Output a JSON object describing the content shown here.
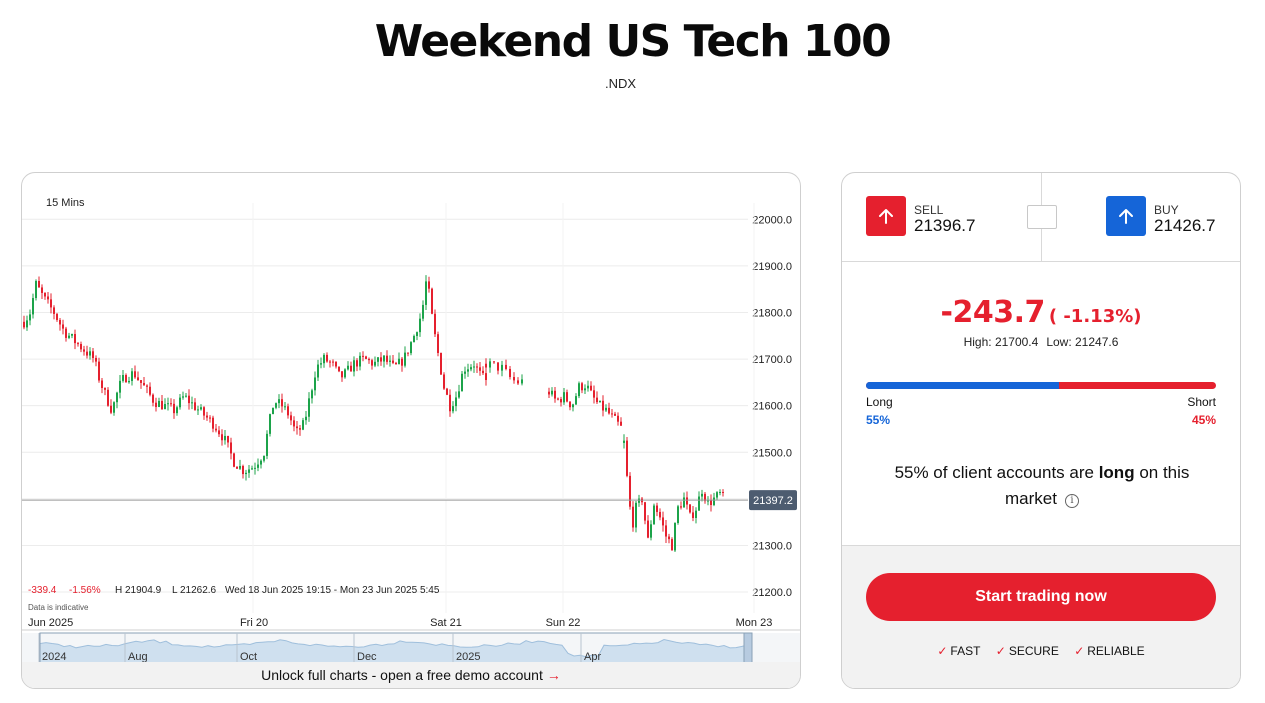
{
  "header": {
    "title": "Weekend US Tech 100",
    "symbol": ".NDX"
  },
  "chart": {
    "interval": "15 Mins",
    "summary": {
      "change": "-339.4",
      "change_pct": "-1.56%",
      "high": "H 21904.9",
      "low": "L 21262.6",
      "range": "Wed 18 Jun 2025 19:15 - Mon 23 Jun 2025 5:45"
    },
    "disclaimer": "Data is indicative",
    "current_price_label": "21397.2",
    "current_price": 21397.2,
    "unlock_text": "Unlock full charts - open a free demo account",
    "unlock_arrow": "→"
  },
  "chart_data": {
    "type": "candlestick",
    "interval": "15 Mins",
    "y_ticks": [
      "22000.0",
      "21900.0",
      "21800.0",
      "21700.0",
      "21600.0",
      "21500.0",
      "21400.0",
      "21300.0",
      "21200.0"
    ],
    "ylim": [
      21155,
      22035
    ],
    "x_labels": [
      "Jun 2025",
      "Fri 20",
      "Sat 21",
      "Sun 22",
      "Mon 23"
    ],
    "overview_labels": [
      "2024",
      "Aug",
      "Oct",
      "Dec",
      "2025",
      "Apr"
    ],
    "high": 21904.9,
    "low": 21262.6,
    "change": -339.4,
    "change_pct": -1.56,
    "current": 21397.2,
    "segments": [
      {
        "points": [
          [
            0,
            21780
          ],
          [
            6,
            21800
          ],
          [
            12,
            21860
          ],
          [
            20,
            21830
          ],
          [
            30,
            21800
          ],
          [
            40,
            21760
          ],
          [
            50,
            21740
          ],
          [
            60,
            21720
          ],
          [
            70,
            21700
          ],
          [
            75,
            21660
          ],
          [
            80,
            21630
          ],
          [
            88,
            21590
          ],
          [
            95,
            21640
          ],
          [
            100,
            21660
          ],
          [
            110,
            21670
          ],
          [
            120,
            21640
          ],
          [
            130,
            21610
          ],
          [
            140,
            21600
          ],
          [
            150,
            21590
          ],
          [
            160,
            21620
          ],
          [
            170,
            21600
          ],
          [
            180,
            21580
          ],
          [
            190,
            21560
          ],
          [
            200,
            21530
          ],
          [
            210,
            21480
          ],
          [
            220,
            21460
          ],
          [
            230,
            21470
          ],
          [
            240,
            21500
          ],
          [
            245,
            21560
          ],
          [
            250,
            21610
          ],
          [
            258,
            21600
          ],
          [
            265,
            21580
          ],
          [
            272,
            21540
          ],
          [
            280,
            21560
          ],
          [
            286,
            21620
          ],
          [
            292,
            21680
          ],
          [
            300,
            21700
          ],
          [
            308,
            21690
          ],
          [
            316,
            21660
          ],
          [
            322,
            21670
          ],
          [
            330,
            21690
          ],
          [
            340,
            21700
          ],
          [
            350,
            21690
          ],
          [
            360,
            21700
          ],
          [
            370,
            21680
          ],
          [
            380,
            21700
          ],
          [
            390,
            21750
          ],
          [
            398,
            21800
          ],
          [
            403,
            21880
          ],
          [
            406,
            21820
          ],
          [
            410,
            21760
          ],
          [
            415,
            21700
          ],
          [
            420,
            21640
          ],
          [
            426,
            21600
          ],
          [
            432,
            21620
          ],
          [
            440,
            21680
          ],
          [
            450,
            21690
          ],
          [
            455,
            21670
          ],
          [
            462,
            21650
          ]
        ]
      },
      {
        "points": [
          [
            462,
            21690
          ],
          [
            470,
            21685
          ],
          [
            478,
            21680
          ],
          [
            486,
            21660
          ],
          [
            492,
            21650
          ],
          [
            500,
            21652
          ]
        ]
      },
      {
        "points": [
          [
            525,
            21630
          ],
          [
            532,
            21610
          ],
          [
            540,
            21620
          ],
          [
            548,
            21600
          ],
          [
            555,
            21640
          ],
          [
            562,
            21645
          ],
          [
            568,
            21620
          ],
          [
            575,
            21600
          ],
          [
            582,
            21590
          ],
          [
            590,
            21570
          ],
          [
            598,
            21550
          ]
        ]
      },
      {
        "points": [
          [
            600,
            21520
          ],
          [
            604,
            21420
          ],
          [
            608,
            21340
          ],
          [
            612,
            21380
          ],
          [
            618,
            21400
          ],
          [
            624,
            21310
          ],
          [
            630,
            21390
          ],
          [
            636,
            21360
          ],
          [
            642,
            21320
          ],
          [
            648,
            21300
          ],
          [
            654,
            21380
          ],
          [
            660,
            21400
          ],
          [
            666,
            21360
          ],
          [
            672,
            21380
          ],
          [
            678,
            21420
          ],
          [
            684,
            21390
          ],
          [
            690,
            21400
          ],
          [
            696,
            21410
          ],
          [
            700,
            21398
          ]
        ]
      }
    ]
  },
  "trade": {
    "sell_label": "SELL",
    "sell_price": "21396.7",
    "buy_label": "BUY",
    "buy_price": "21426.7",
    "change": "-243.7",
    "change_pct": "( -1.13%)",
    "high": "High: 21700.4",
    "low": "Low: 21247.6",
    "long_label": "Long",
    "short_label": "Short",
    "long_pct": "55%",
    "short_pct": "45%",
    "long_fraction": 0.55,
    "sentiment_prefix": "55% of client accounts are",
    "sentiment_bold": "long",
    "sentiment_suffix": "on this market",
    "info_glyph": "i",
    "cta_label": "Start trading now",
    "features": [
      "FAST",
      "SECURE",
      "RELIABLE"
    ],
    "check_glyph": "✓"
  },
  "colors": {
    "accent": "#e5202e",
    "blue": "#1565d8",
    "up_candle": "#1ca34a",
    "down_candle": "#e5202e"
  }
}
